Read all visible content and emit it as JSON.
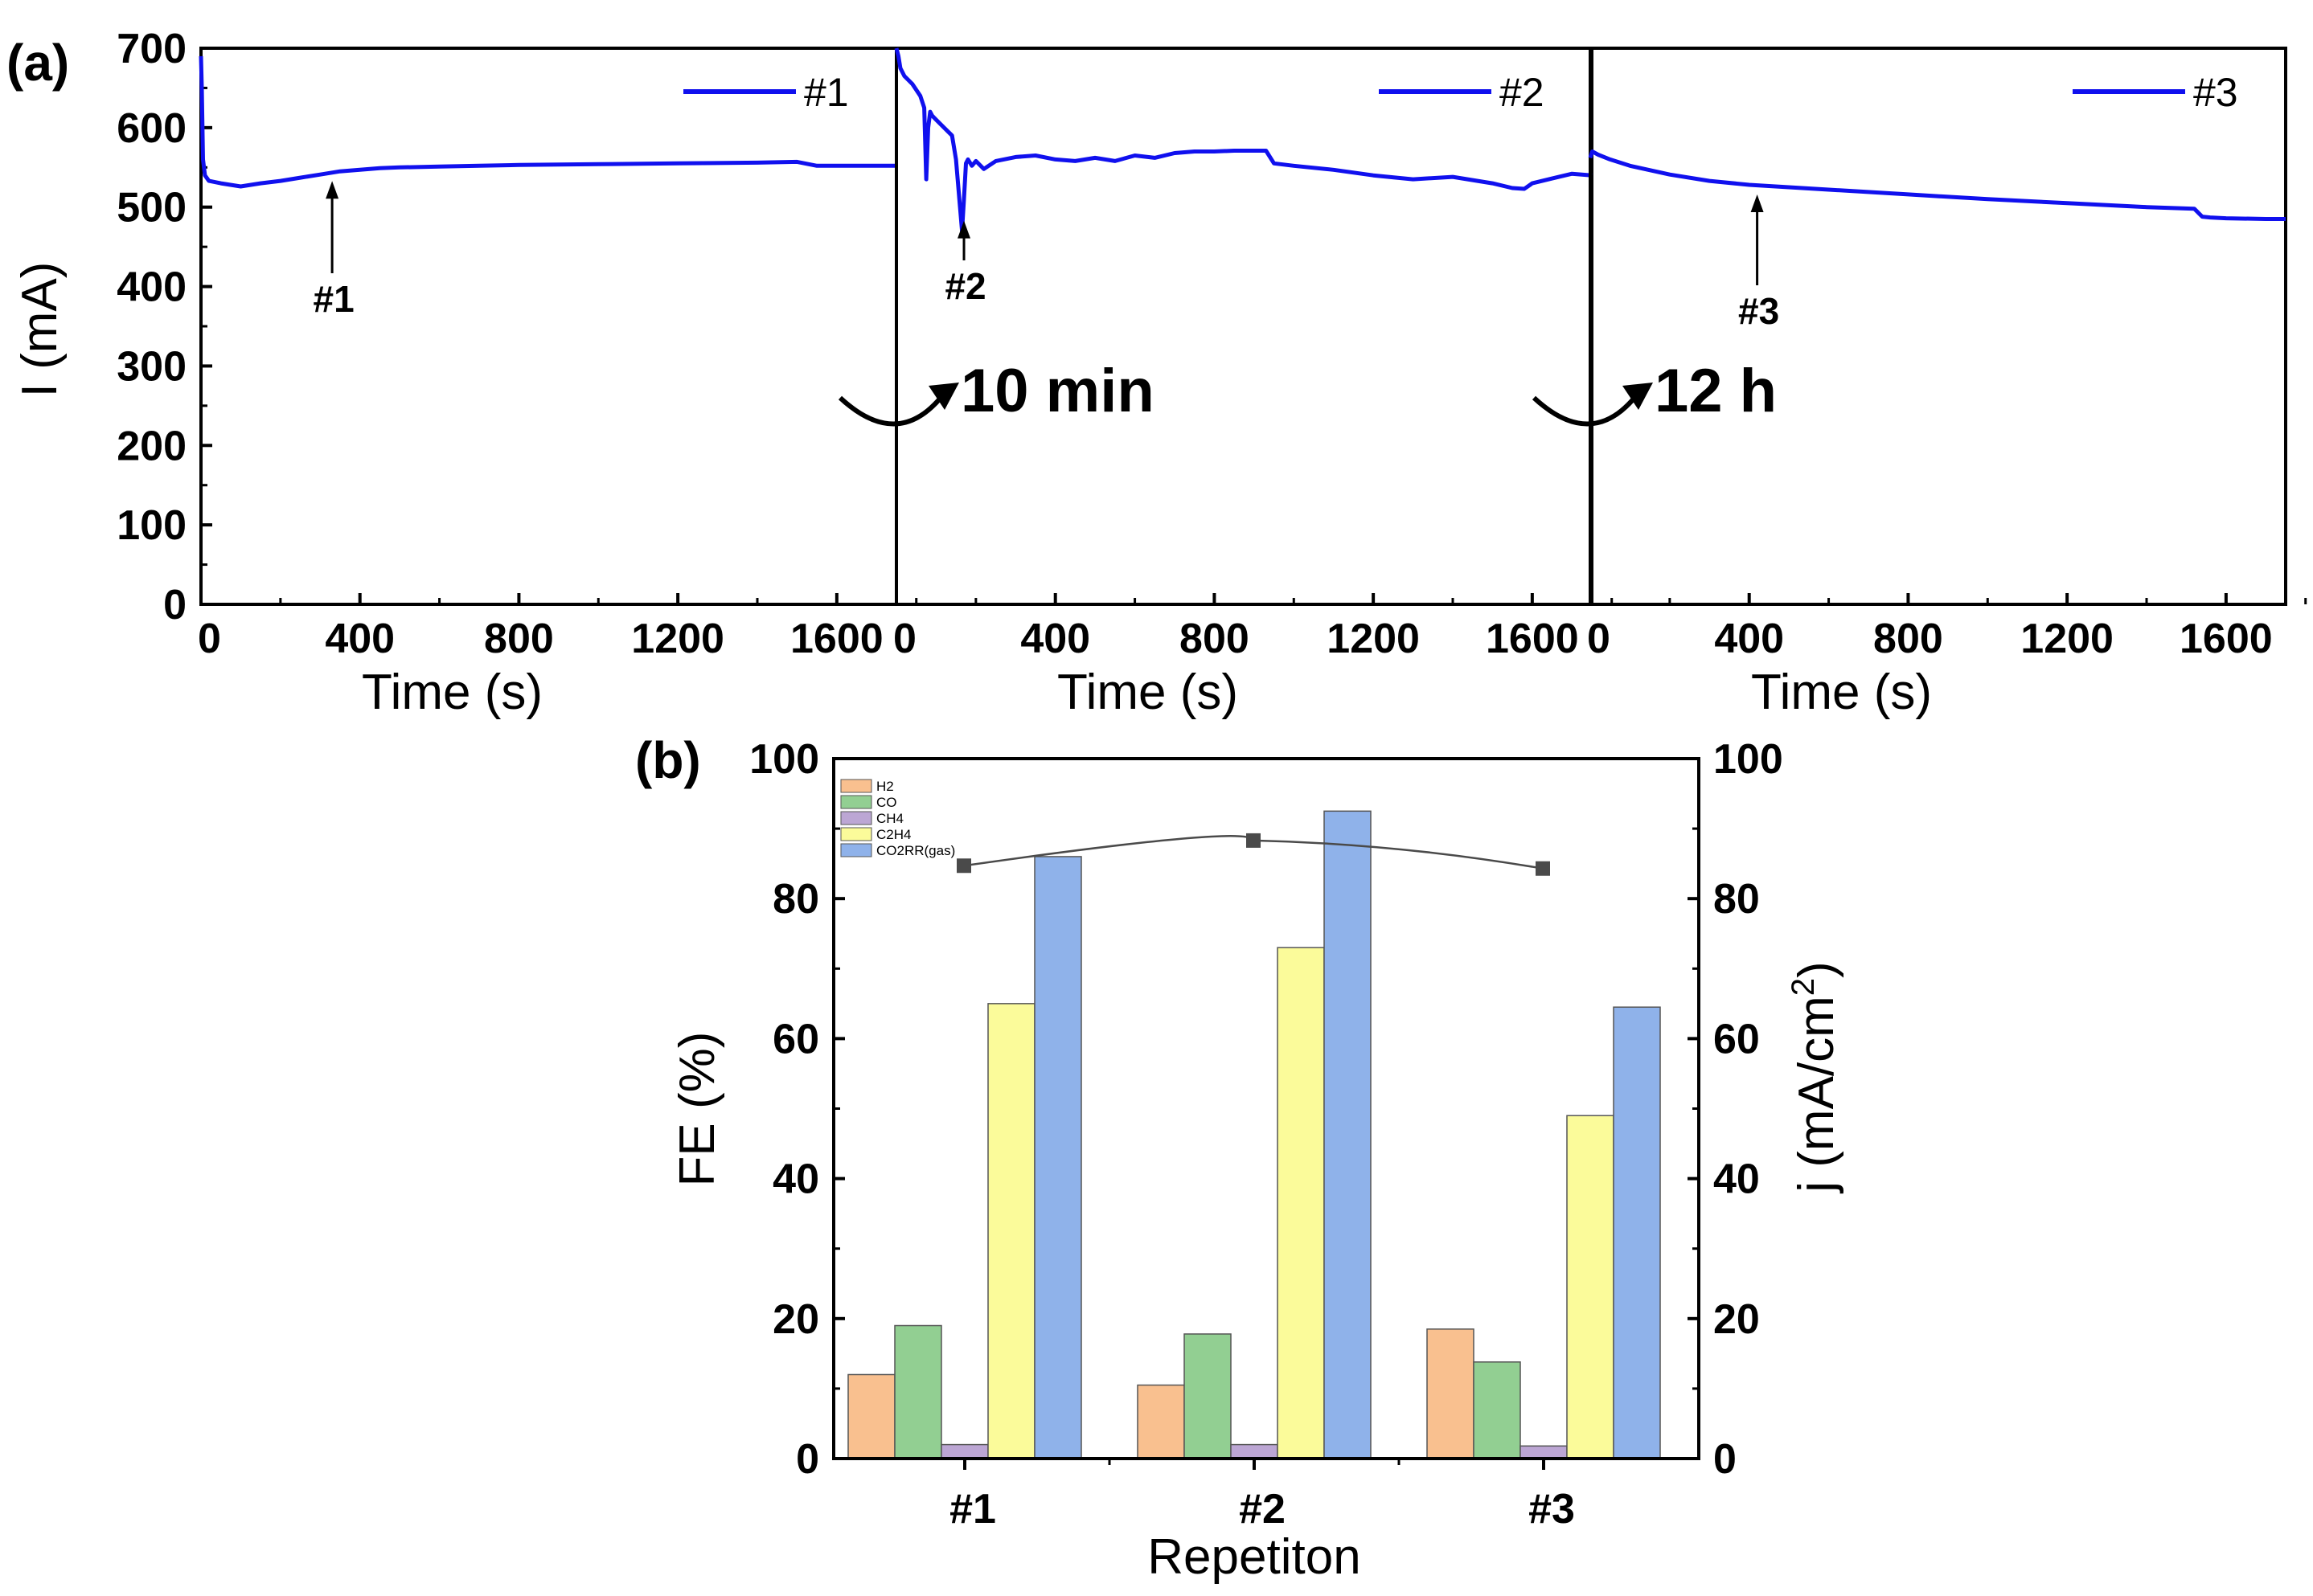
{
  "chart_data": [
    {
      "panel": "(a)",
      "type": "line",
      "ylabel": "I (mA)",
      "ylim": [
        0,
        700
      ],
      "yticks": [
        "0",
        "100",
        "200",
        "300",
        "400",
        "500",
        "600",
        "700"
      ],
      "line_color": "#1010ee",
      "subplots": [
        {
          "legend": "#1",
          "xlabel": "Time (s)",
          "xlim": [
            0,
            1750
          ],
          "xticks": [
            "0",
            "400",
            "800",
            "1200",
            "1600"
          ],
          "annotation": "#1",
          "annotation_at": [
            330,
            545
          ],
          "series": {
            "x": [
              0,
              2,
              5,
              10,
              20,
              50,
              100,
              150,
              200,
              250,
              300,
              350,
              400,
              450,
              500,
              600,
              700,
              800,
              1000,
              1200,
              1400,
              1500,
              1550,
              1750
            ],
            "y": [
              690,
              650,
              560,
              540,
              533,
              530,
              526,
              530,
              533,
              537,
              541,
              545,
              547,
              549,
              550,
              551,
              552,
              553,
              554,
              555,
              556,
              557,
              552,
              552
            ]
          }
        },
        {
          "legend": "#2",
          "xlabel": "Time (s)",
          "xlim": [
            0,
            1750
          ],
          "xticks": [
            "0",
            "400",
            "800",
            "1200",
            "1600"
          ],
          "annotation": "#2",
          "annotation_at": [
            170,
            495
          ],
          "series": {
            "x": [
              0,
              5,
              10,
              20,
              40,
              60,
              70,
              75,
              80,
              85,
              90,
              100,
              120,
              140,
              150,
              160,
              165,
              170,
              175,
              180,
              190,
              200,
              220,
              250,
              300,
              350,
              400,
              450,
              500,
              550,
              600,
              650,
              700,
              750,
              800,
              850,
              900,
              930,
              950,
              1000,
              1100,
              1200,
              1300,
              1400,
              1500,
              1550,
              1580,
              1600,
              1650,
              1700,
              1750
            ],
            "y": [
              700,
              690,
              675,
              665,
              655,
              640,
              625,
              535,
              600,
              620,
              615,
              610,
              600,
              590,
              560,
              500,
              470,
              510,
              555,
              560,
              552,
              558,
              548,
              558,
              563,
              565,
              560,
              558,
              562,
              558,
              565,
              562,
              568,
              570,
              570,
              571,
              571,
              571,
              555,
              552,
              547,
              540,
              535,
              538,
              530,
              524,
              523,
              530,
              536,
              542,
              540
            ]
          }
        },
        {
          "legend": "#3",
          "xlabel": "Time (s)",
          "xlim": [
            0,
            1750
          ],
          "xticks": [
            "0",
            "400",
            "800",
            "1200",
            "1600"
          ],
          "annotation": "#3",
          "annotation_at": [
            420,
            528
          ],
          "series": {
            "x": [
              0,
              5,
              20,
              50,
              100,
              200,
              300,
              400,
              500,
              600,
              800,
              1000,
              1200,
              1400,
              1520,
              1540,
              1560,
              1600,
              1700,
              1750
            ],
            "y": [
              562,
              570,
              566,
              560,
              552,
              541,
              533,
              528,
              525,
              522,
              516,
              510,
              505,
              500,
              498,
              488,
              487,
              486,
              485,
              485
            ]
          }
        }
      ],
      "transitions": [
        "10 min",
        "12 h"
      ]
    },
    {
      "panel": "(b)",
      "type": "bar",
      "xlabel": "Repetiton",
      "ylabel": "FE (%)",
      "y2label": "j (mA/cm",
      "y2label_sup": "2",
      "y2label_end": ")",
      "ylim": [
        0,
        100
      ],
      "y2lim": [
        0,
        100
      ],
      "yticks": [
        "0",
        "20",
        "40",
        "60",
        "80",
        "100"
      ],
      "categories": [
        "#1",
        "#2",
        "#3"
      ],
      "series": [
        {
          "name": "H2",
          "color": "#f9c08f",
          "values": [
            12,
            10.5,
            18.5
          ]
        },
        {
          "name": "CO",
          "color": "#92cf92",
          "values": [
            19,
            17.8,
            13.8
          ]
        },
        {
          "name": "CH4",
          "color": "#bca6d4",
          "values": [
            2,
            2,
            1.8
          ]
        },
        {
          "name": "C2H4",
          "color": "#fbfb9a",
          "values": [
            65,
            73,
            49
          ]
        },
        {
          "name": "CO2RR(gas)",
          "color": "#8fb2ea",
          "values": [
            86,
            92.5,
            64.5
          ]
        }
      ],
      "line_series": {
        "name": "j",
        "color": "#4a4a4a",
        "axis": "right",
        "values": [
          84.7,
          88.3,
          84.3
        ]
      }
    }
  ]
}
